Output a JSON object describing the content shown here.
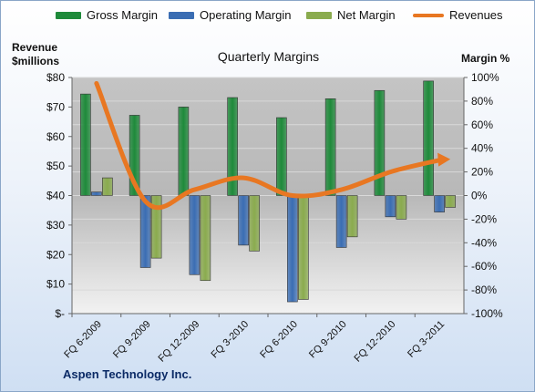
{
  "chart_data": {
    "type": "bar+line",
    "title": "Quarterly Margins",
    "categories": [
      "FQ 6-2009",
      "FQ 9-2009",
      "FQ 12-2009",
      "FQ 3-2010",
      "FQ 6-2010",
      "FQ 9-2010",
      "FQ 12-2010",
      "FQ 3-2011"
    ],
    "series": [
      {
        "name": "Gross Margin",
        "axis": "right",
        "type": "bar",
        "color": "#1e8a3a",
        "values": [
          86,
          68,
          75,
          83,
          66,
          82,
          89,
          97
        ]
      },
      {
        "name": "Operating Margin",
        "axis": "right",
        "type": "bar",
        "color": "#3a6db3",
        "values": [
          3,
          -61,
          -67,
          -42,
          -90,
          -44,
          -18,
          -14
        ]
      },
      {
        "name": "Net Margin",
        "axis": "right",
        "type": "bar",
        "color": "#8aab4e",
        "values": [
          15,
          -53,
          -72,
          -47,
          -88,
          -35,
          -20,
          -10
        ]
      },
      {
        "name": "Revenues",
        "axis": "left",
        "type": "line",
        "color": "#e87722",
        "values": [
          78,
          38,
          42,
          46,
          40,
          42,
          48,
          52
        ]
      }
    ],
    "ylabel_left": "Revenue\n$millions",
    "ylabel_right": "Margin %",
    "ylim_left": [
      0,
      80
    ],
    "ylim_right": [
      -100,
      100
    ],
    "left_ticks": [
      "$-",
      "$10",
      "$20",
      "$30",
      "$40",
      "$50",
      "$60",
      "$70",
      "$80"
    ],
    "right_ticks": [
      "-100%",
      "-80%",
      "-60%",
      "-40%",
      "-20%",
      "0%",
      "20%",
      "40%",
      "60%",
      "80%",
      "100%"
    ],
    "legend_position": "top",
    "grid": true,
    "footer": "Aspen Technology Inc."
  }
}
